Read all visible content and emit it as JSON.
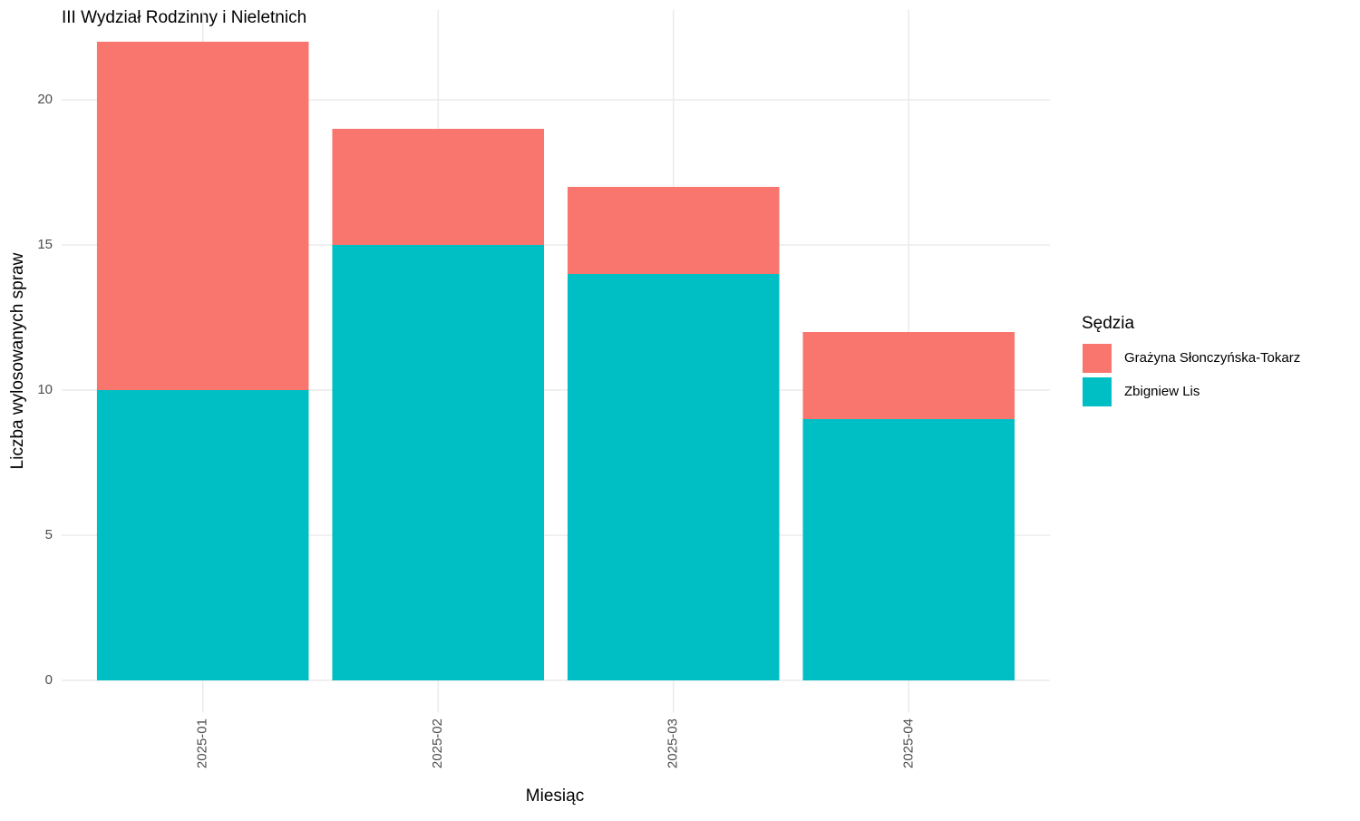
{
  "chart_data": {
    "type": "stacked-bar",
    "title": "III Wydział Rodzinny i Nieletnich",
    "x_label": "Miesiąc",
    "y_label": "Liczba wylosowanych spraw",
    "legend_title": "Sędzia",
    "categories": [
      "2025-01",
      "2025-02",
      "2025-03",
      "2025-04"
    ],
    "series": [
      {
        "name": "Grażyna Słonczyńska-Tokarz",
        "color": "#f8766d",
        "values": [
          12,
          4,
          3,
          3
        ]
      },
      {
        "name": "Zbigniew Lis",
        "color": "#00bfc4",
        "values": [
          10,
          15,
          14,
          9
        ]
      }
    ],
    "ylim": [
      -1.1,
      23.1
    ],
    "yticks": [
      0,
      5,
      10,
      15,
      20
    ],
    "grid": true,
    "legend": "right"
  }
}
